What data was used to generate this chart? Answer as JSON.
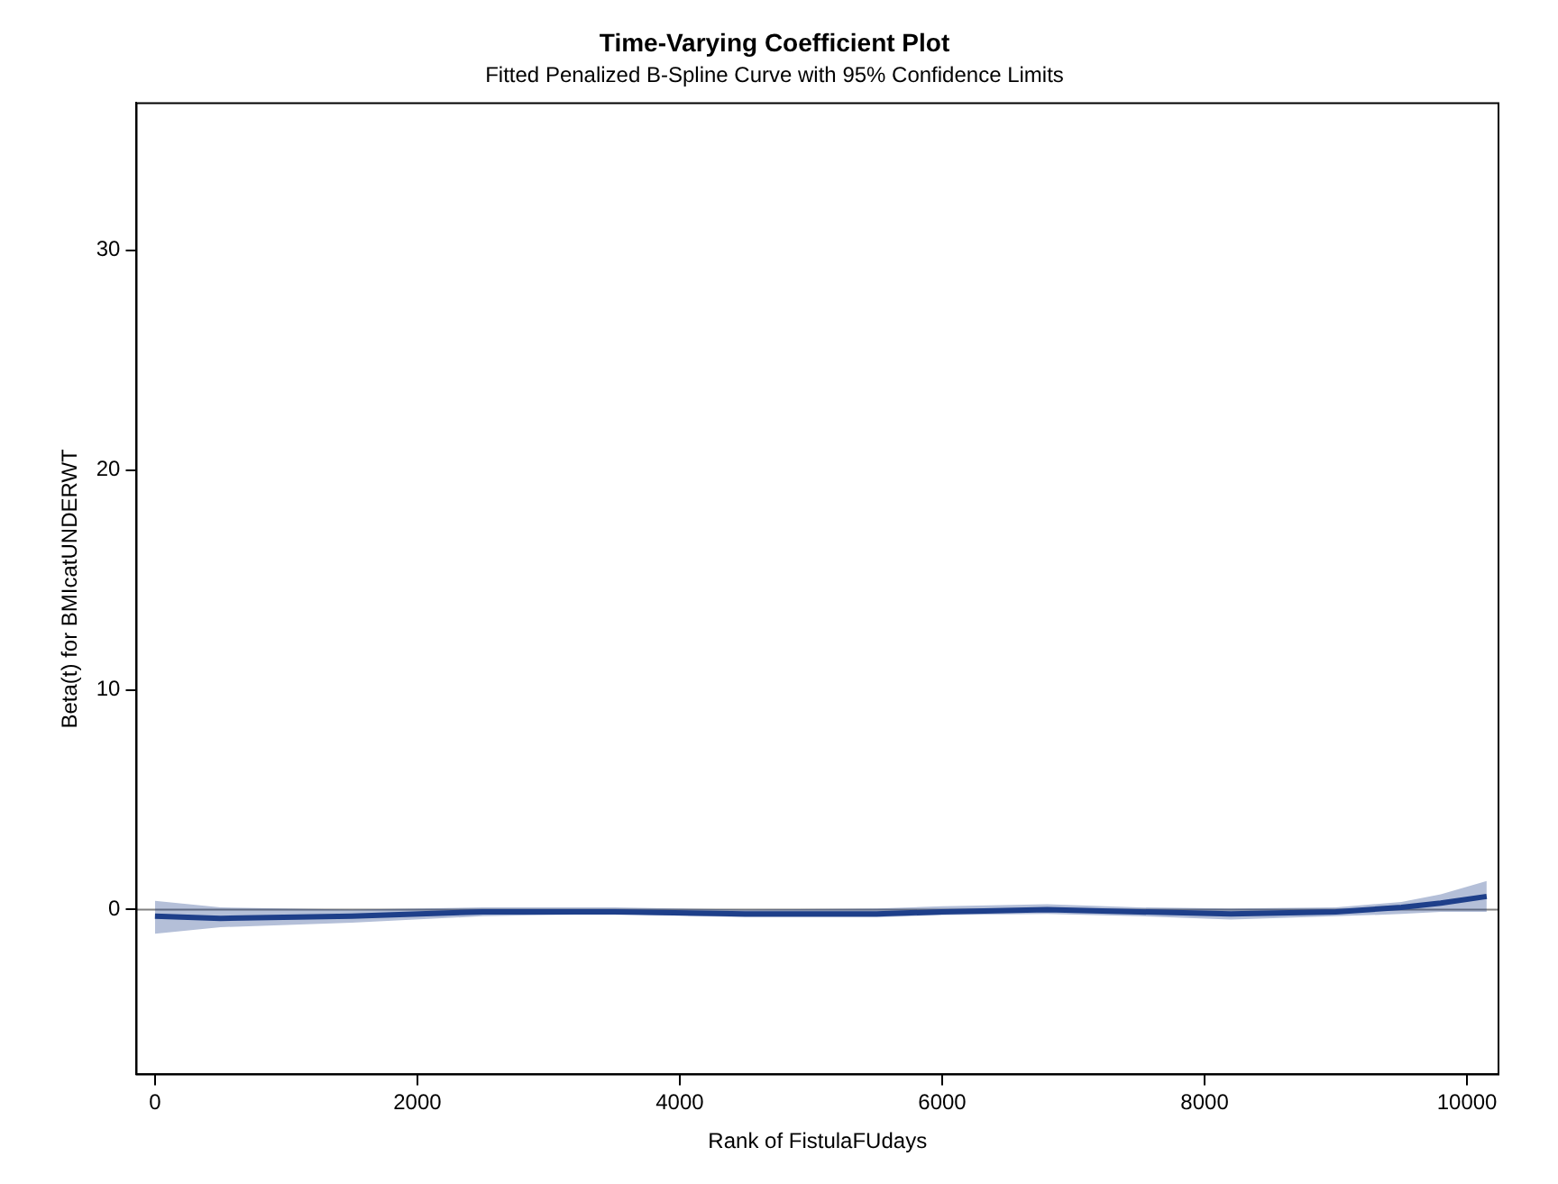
{
  "chart_data": {
    "type": "line",
    "title": "Time-Varying Coefficient Plot",
    "subtitle": "Fitted Penalized B-Spline Curve with 95% Confidence Limits",
    "xlabel": "Rank of FistulaFUdays",
    "ylabel": "Beta(t) for BMIcatUNDERWT",
    "x": [
      0,
      500,
      1500,
      2500,
      3500,
      4500,
      5500,
      6000,
      6800,
      7500,
      8200,
      9000,
      9500,
      9800,
      10150
    ],
    "series": [
      {
        "color": "#1f3f8a",
        "values": [
          -0.3,
          -0.4,
          -0.3,
          -0.1,
          -0.1,
          -0.2,
          -0.2,
          -0.1,
          0.0,
          -0.1,
          -0.2,
          -0.1,
          0.1,
          0.3,
          0.6
        ],
        "lower": [
          -1.1,
          -0.8,
          -0.6,
          -0.3,
          -0.2,
          -0.35,
          -0.35,
          -0.25,
          -0.2,
          -0.3,
          -0.45,
          -0.3,
          -0.2,
          -0.1,
          -0.1
        ],
        "upper": [
          0.4,
          0.1,
          0.0,
          0.1,
          0.1,
          0.0,
          0.05,
          0.15,
          0.25,
          0.1,
          0.05,
          0.1,
          0.35,
          0.7,
          1.3
        ]
      }
    ],
    "xlim": [
      -140,
      10240
    ],
    "xticks": [
      0,
      2000,
      4000,
      6000,
      8000,
      10000
    ],
    "ylim": [
      -7.5,
      36.7
    ],
    "yticks": [
      0,
      10,
      20,
      30
    ],
    "ref_lines": [
      {
        "axis": "y",
        "value": 0,
        "color": "#808080"
      }
    ],
    "grid": false,
    "legend": false,
    "marker": "none",
    "line_style": "solid"
  }
}
